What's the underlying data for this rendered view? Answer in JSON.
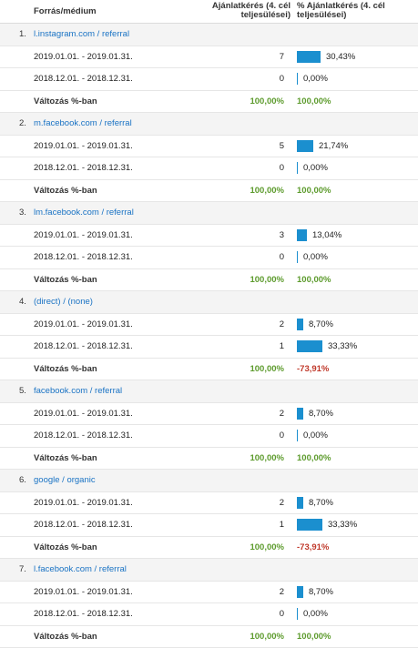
{
  "header": {
    "source_label": "Forrás/médium",
    "col1_label": "Ajánlatkérés (4. cél teljesülései)",
    "col2_label": "% Ajánlatkérés (4. cél teljesülései)"
  },
  "colors": {
    "bar": "#1b8fcf",
    "positive": "#5d9b2d",
    "negative": "#c0392b",
    "link": "#1a73c4"
  },
  "change_label": "Változás %-ban",
  "groups": [
    {
      "index": "1.",
      "source": "l.instagram.com / referral",
      "rows": [
        {
          "date": "2019.01.01. - 2019.01.31.",
          "value": "7",
          "pct": "30,43%",
          "fraction": 0.3043
        },
        {
          "date": "2018.12.01. - 2018.12.31.",
          "value": "0",
          "pct": "0,00%",
          "fraction": 0
        }
      ],
      "change1": "100,00%",
      "change2": "100,00%",
      "change_sign": "positive"
    },
    {
      "index": "2.",
      "source": "m.facebook.com / referral",
      "rows": [
        {
          "date": "2019.01.01. - 2019.01.31.",
          "value": "5",
          "pct": "21,74%",
          "fraction": 0.2174
        },
        {
          "date": "2018.12.01. - 2018.12.31.",
          "value": "0",
          "pct": "0,00%",
          "fraction": 0
        }
      ],
      "change1": "100,00%",
      "change2": "100,00%",
      "change_sign": "positive"
    },
    {
      "index": "3.",
      "source": "lm.facebook.com / referral",
      "rows": [
        {
          "date": "2019.01.01. - 2019.01.31.",
          "value": "3",
          "pct": "13,04%",
          "fraction": 0.1304
        },
        {
          "date": "2018.12.01. - 2018.12.31.",
          "value": "0",
          "pct": "0,00%",
          "fraction": 0
        }
      ],
      "change1": "100,00%",
      "change2": "100,00%",
      "change_sign": "positive"
    },
    {
      "index": "4.",
      "source": "(direct) / (none)",
      "rows": [
        {
          "date": "2019.01.01. - 2019.01.31.",
          "value": "2",
          "pct": "8,70%",
          "fraction": 0.087
        },
        {
          "date": "2018.12.01. - 2018.12.31.",
          "value": "1",
          "pct": "33,33%",
          "fraction": 0.3333
        }
      ],
      "change1": "100,00%",
      "change2": "-73,91%",
      "change_sign": "negative"
    },
    {
      "index": "5.",
      "source": "facebook.com / referral",
      "rows": [
        {
          "date": "2019.01.01. - 2019.01.31.",
          "value": "2",
          "pct": "8,70%",
          "fraction": 0.087
        },
        {
          "date": "2018.12.01. - 2018.12.31.",
          "value": "0",
          "pct": "0,00%",
          "fraction": 0
        }
      ],
      "change1": "100,00%",
      "change2": "100,00%",
      "change_sign": "positive"
    },
    {
      "index": "6.",
      "source": "google / organic",
      "rows": [
        {
          "date": "2019.01.01. - 2019.01.31.",
          "value": "2",
          "pct": "8,70%",
          "fraction": 0.087
        },
        {
          "date": "2018.12.01. - 2018.12.31.",
          "value": "1",
          "pct": "33,33%",
          "fraction": 0.3333
        }
      ],
      "change1": "100,00%",
      "change2": "-73,91%",
      "change_sign": "negative"
    },
    {
      "index": "7.",
      "source": "l.facebook.com / referral",
      "rows": [
        {
          "date": "2019.01.01. - 2019.01.31.",
          "value": "2",
          "pct": "8,70%",
          "fraction": 0.087
        },
        {
          "date": "2018.12.01. - 2018.12.31.",
          "value": "0",
          "pct": "0,00%",
          "fraction": 0
        }
      ],
      "change1": "100,00%",
      "change2": "100,00%",
      "change_sign": "positive"
    }
  ]
}
